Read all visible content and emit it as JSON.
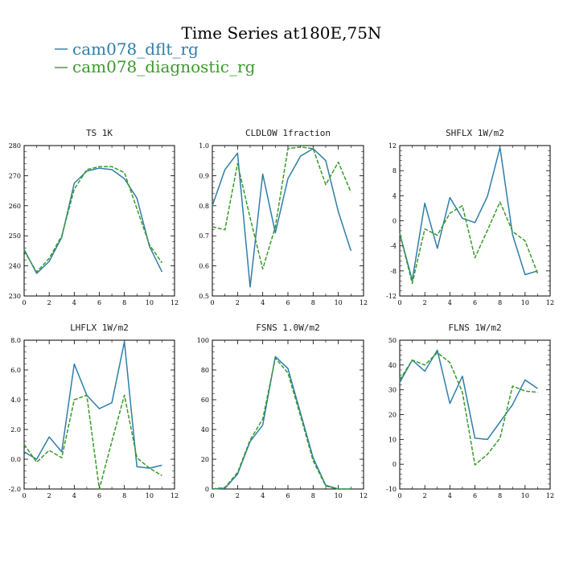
{
  "page": {
    "title": "Time Series at180E,75N"
  },
  "legend": {
    "placement": "top-left",
    "items": [
      {
        "label": "cam078_dflt_rg",
        "color": "#2f7ea8",
        "dash": "solid"
      },
      {
        "label": "cam078_diagnostic_rg",
        "color": "#3a9a2a",
        "dash": "dashed"
      }
    ]
  },
  "chart_data": [
    {
      "type": "line",
      "title": "TS   1K",
      "x": [
        0,
        1,
        2,
        3,
        4,
        5,
        6,
        7,
        8,
        9,
        10,
        11
      ],
      "xlim": [
        0,
        12
      ],
      "xticks": [
        0,
        2,
        4,
        6,
        8,
        10,
        12
      ],
      "xtick_labels": [
        "0",
        "2",
        "4",
        "6",
        "8",
        "10",
        "12"
      ],
      "ylim": [
        230,
        280
      ],
      "yticks": [
        230,
        240,
        250,
        260,
        270,
        280
      ],
      "ytick_labels": [
        "230",
        "240",
        "250",
        "260",
        "270",
        "280"
      ],
      "series": [
        {
          "name": "cam078_dflt_rg",
          "values": [
            245.5,
            237.5,
            241.5,
            249.5,
            267.5,
            271.5,
            272.5,
            272.0,
            269.0,
            262.5,
            246.5,
            238.0
          ]
        },
        {
          "name": "cam078_diagnostic_rg",
          "values": [
            245.0,
            238.0,
            242.5,
            250.0,
            265.5,
            272.0,
            273.0,
            273.0,
            271.0,
            259.0,
            247.0,
            241.0
          ]
        }
      ]
    },
    {
      "type": "line",
      "title": "CLDLOW   1fraction",
      "x": [
        0,
        1,
        2,
        3,
        4,
        5,
        6,
        7,
        8,
        9,
        10,
        11
      ],
      "xlim": [
        0,
        12
      ],
      "xticks": [
        0,
        2,
        4,
        6,
        8,
        10,
        12
      ],
      "xtick_labels": [
        "0",
        "2",
        "4",
        "6",
        "8",
        "10",
        "12"
      ],
      "ylim": [
        0.5,
        1.0
      ],
      "yticks": [
        0.5,
        0.6,
        0.7,
        0.8,
        0.9,
        1.0
      ],
      "ytick_labels": [
        "0.5",
        "0.6",
        "0.7",
        "0.8",
        "0.9",
        "1.0"
      ],
      "series": [
        {
          "name": "cam078_dflt_rg",
          "values": [
            0.8,
            0.92,
            0.975,
            0.53,
            0.905,
            0.71,
            0.89,
            0.965,
            0.99,
            0.95,
            0.78,
            0.65
          ]
        },
        {
          "name": "cam078_diagnostic_rg",
          "values": [
            0.73,
            0.72,
            0.94,
            0.76,
            0.59,
            0.73,
            0.99,
            0.995,
            0.99,
            0.87,
            0.945,
            0.845
          ]
        }
      ]
    },
    {
      "type": "line",
      "title": "SHFLX   1W/m2",
      "x": [
        0,
        1,
        2,
        3,
        4,
        5,
        6,
        7,
        8,
        9,
        10,
        11
      ],
      "xlim": [
        0,
        12
      ],
      "xticks": [
        0,
        2,
        4,
        6,
        8,
        10,
        12
      ],
      "xtick_labels": [
        "0",
        "2",
        "4",
        "6",
        "8",
        "10",
        "12"
      ],
      "ylim": [
        -12,
        12
      ],
      "yticks": [
        -12,
        -8,
        -4,
        0,
        4,
        8,
        12
      ],
      "ytick_labels": [
        "-12",
        "-8",
        "-4",
        "0",
        "4",
        "8",
        "12"
      ],
      "series": [
        {
          "name": "cam078_dflt_rg",
          "values": [
            -2.0,
            -9.5,
            2.8,
            -4.4,
            3.7,
            0.4,
            -0.3,
            3.9,
            11.7,
            -2.2,
            -8.6,
            -8.0
          ]
        },
        {
          "name": "cam078_diagnostic_rg",
          "values": [
            -2.0,
            -10.0,
            -1.3,
            -2.3,
            1.2,
            2.4,
            -5.9,
            -1.5,
            3.0,
            -1.7,
            -3.2,
            -8.4
          ]
        }
      ]
    },
    {
      "type": "line",
      "title": "LHFLX   1W/m2",
      "x": [
        0,
        1,
        2,
        3,
        4,
        5,
        6,
        7,
        8,
        9,
        10,
        11
      ],
      "xlim": [
        0,
        12
      ],
      "xticks": [
        0,
        2,
        4,
        6,
        8,
        10,
        12
      ],
      "xtick_labels": [
        "0",
        "2",
        "4",
        "6",
        "8",
        "10",
        "12"
      ],
      "ylim": [
        -2.0,
        8.0
      ],
      "yticks": [
        -2,
        0,
        2,
        4,
        6,
        8
      ],
      "ytick_labels": [
        "-2.0",
        "0.0",
        "2.0",
        "4.0",
        "6.0",
        "8.0"
      ],
      "series": [
        {
          "name": "cam078_dflt_rg",
          "values": [
            0.5,
            0.0,
            1.5,
            0.5,
            6.4,
            4.3,
            3.4,
            3.8,
            7.9,
            -0.5,
            -0.6,
            -0.4
          ]
        },
        {
          "name": "cam078_diagnostic_rg",
          "values": [
            1.0,
            -0.2,
            0.6,
            0.1,
            4.0,
            4.3,
            -2.0,
            1.2,
            4.3,
            0.1,
            -0.6,
            -1.1
          ]
        }
      ]
    },
    {
      "type": "line",
      "title": "FSNS   1.0W/m2",
      "x": [
        0,
        1,
        2,
        3,
        4,
        5,
        6,
        7,
        8,
        9,
        10,
        11
      ],
      "xlim": [
        0,
        12
      ],
      "xticks": [
        0,
        2,
        4,
        6,
        8,
        10,
        12
      ],
      "xtick_labels": [
        "0",
        "2",
        "4",
        "6",
        "8",
        "10",
        "12"
      ],
      "ylim": [
        0,
        100
      ],
      "yticks": [
        0,
        20,
        40,
        60,
        80,
        100
      ],
      "ytick_labels": [
        "0",
        "20",
        "40",
        "60",
        "80",
        "100"
      ],
      "series": [
        {
          "name": "cam078_dflt_rg",
          "values": [
            0,
            0.5,
            10,
            32,
            43,
            89,
            81,
            51,
            21,
            2.5,
            0,
            0
          ]
        },
        {
          "name": "cam078_diagnostic_rg",
          "values": [
            0,
            1,
            11,
            33,
            47,
            88,
            78,
            49,
            19,
            2,
            0,
            0
          ]
        }
      ]
    },
    {
      "type": "line",
      "title": "FLNS   1W/m2",
      "x": [
        0,
        1,
        2,
        3,
        4,
        5,
        6,
        7,
        8,
        9,
        10,
        11
      ],
      "xlim": [
        0,
        12
      ],
      "xticks": [
        0,
        2,
        4,
        6,
        8,
        10,
        12
      ],
      "xtick_labels": [
        "0",
        "2",
        "4",
        "6",
        "8",
        "10",
        "12"
      ],
      "ylim": [
        -10,
        50
      ],
      "yticks": [
        -10,
        0,
        10,
        20,
        30,
        40,
        50
      ],
      "ytick_labels": [
        "-10",
        "0",
        "10",
        "20",
        "30",
        "40",
        "50"
      ],
      "series": [
        {
          "name": "cam078_dflt_rg",
          "values": [
            33,
            42,
            37.5,
            46,
            24.5,
            35.5,
            10.5,
            10,
            17,
            24,
            34,
            30.5
          ]
        },
        {
          "name": "cam078_diagnostic_rg",
          "values": [
            34,
            42,
            40,
            45,
            41,
            29,
            -0.3,
            4,
            10.5,
            31.5,
            29.5,
            29
          ]
        }
      ]
    }
  ]
}
